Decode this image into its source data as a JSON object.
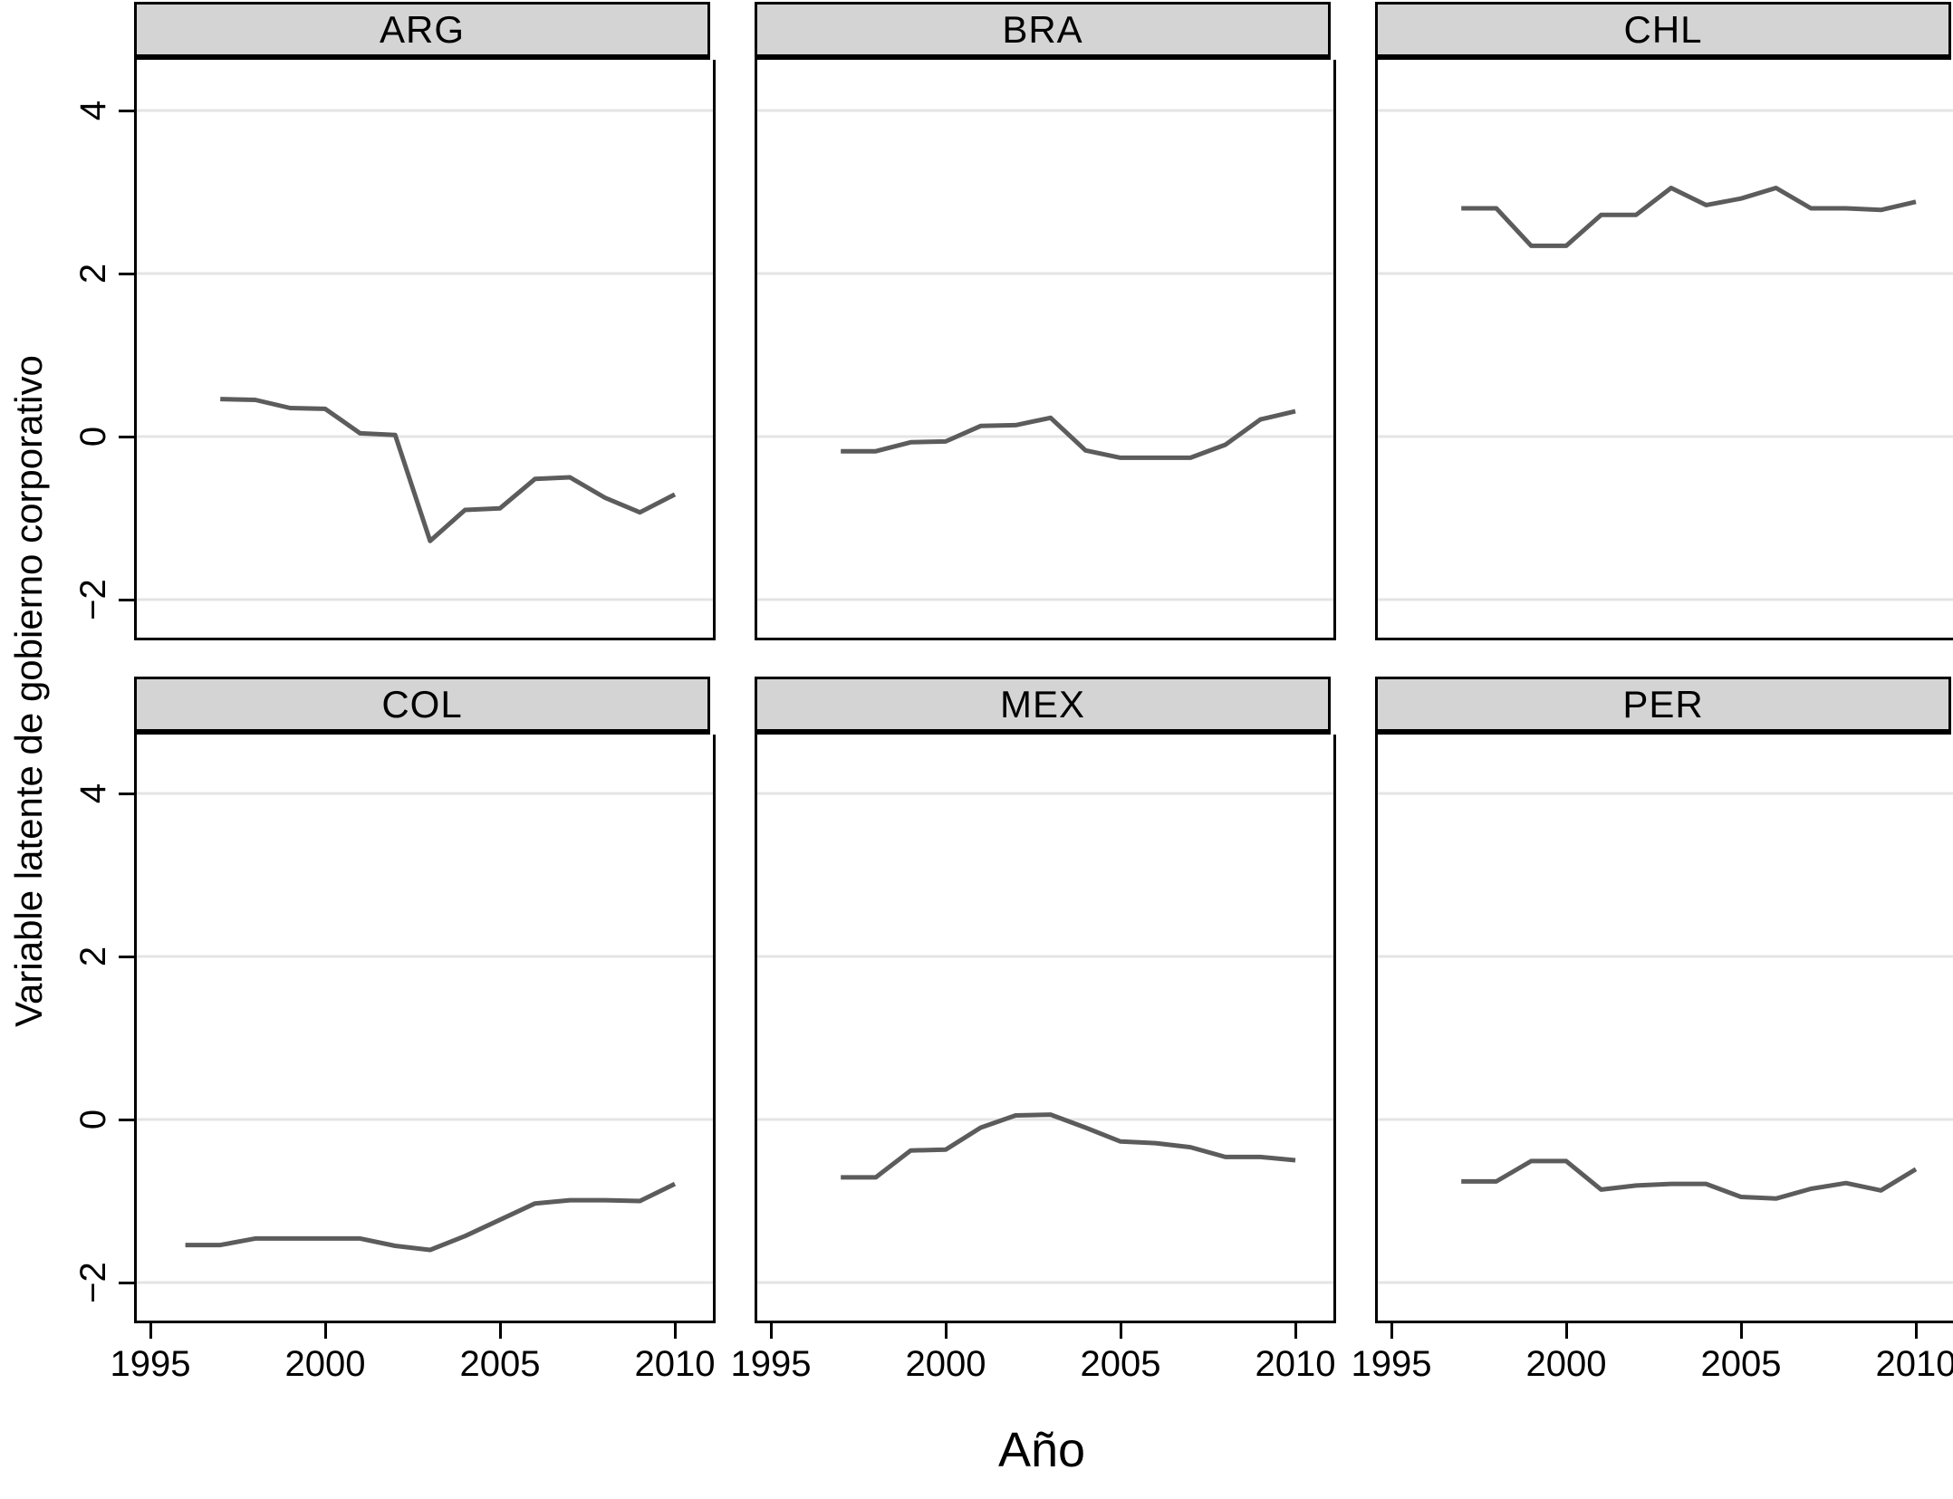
{
  "figure": {
    "xlabel": "Año",
    "ylabel": "Variable latente de gobierno corporativo"
  },
  "chart_data": {
    "type": "line",
    "title": "",
    "xlabel": "Año",
    "ylabel": "Variable latente de gobierno corporativo",
    "facet_layout": [
      "ARG",
      "BRA",
      "CHL",
      "COL",
      "MEX",
      "PER"
    ],
    "x_ticks": [
      1995,
      2000,
      2005,
      2010
    ],
    "x_tick_labels": [
      "1995",
      "2000",
      "2005",
      "2010"
    ],
    "y_ticks": [
      4,
      2,
      0,
      -2
    ],
    "y_tick_labels": [
      "4",
      "2",
      "0",
      "−2"
    ],
    "x_range": [
      1994.5,
      2011.2
    ],
    "y_range": [
      -2.5,
      4.65
    ],
    "grid": "horizontal-only",
    "legend": "none",
    "line_color": "#5c5c5c",
    "grid_color": "#e4e4e4",
    "header_fill": "#d4d4d4",
    "facets": [
      {
        "label": "ARG",
        "start_year": 1997,
        "values": [
          0.46,
          0.45,
          0.35,
          0.34,
          0.04,
          0.02,
          -1.28,
          -0.9,
          -0.88,
          -0.52,
          -0.5,
          -0.75,
          -0.93,
          -0.71
        ]
      },
      {
        "label": "BRA",
        "start_year": 1997,
        "values": [
          -0.18,
          -0.18,
          -0.07,
          -0.06,
          0.13,
          0.14,
          0.23,
          -0.17,
          -0.26,
          -0.26,
          -0.26,
          -0.1,
          0.21,
          0.31
        ]
      },
      {
        "label": "CHL",
        "start_year": 1997,
        "values": [
          2.8,
          2.8,
          2.34,
          2.34,
          2.72,
          2.72,
          3.05,
          2.84,
          2.92,
          3.05,
          2.8,
          2.8,
          2.78,
          2.88
        ]
      },
      {
        "label": "COL",
        "start_year": 1996,
        "values": [
          -1.54,
          -1.54,
          -1.46,
          -1.46,
          -1.46,
          -1.46,
          -1.55,
          -1.6,
          -1.43,
          -1.23,
          -1.03,
          -0.99,
          -0.99,
          -1.0,
          -0.79
        ]
      },
      {
        "label": "MEX",
        "start_year": 1997,
        "values": [
          -0.71,
          -0.71,
          -0.38,
          -0.37,
          -0.1,
          0.05,
          0.06,
          -0.1,
          -0.27,
          -0.29,
          -0.34,
          -0.46,
          -0.46,
          -0.5
        ]
      },
      {
        "label": "PER",
        "start_year": 1997,
        "values": [
          -0.76,
          -0.76,
          -0.51,
          -0.51,
          -0.86,
          -0.81,
          -0.79,
          -0.79,
          -0.95,
          -0.97,
          -0.85,
          -0.78,
          -0.87,
          -0.61
        ]
      }
    ]
  }
}
